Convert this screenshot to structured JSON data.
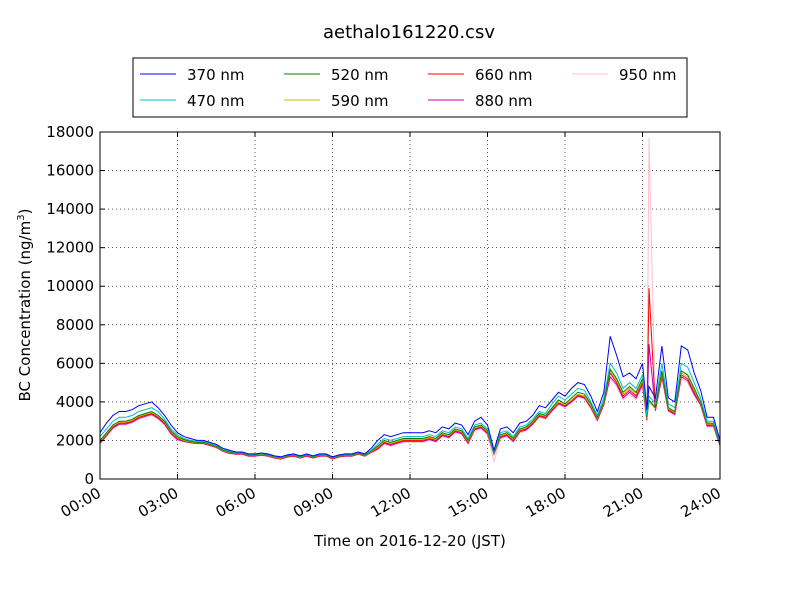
{
  "chart_data": {
    "type": "line",
    "title": "aethalo161220.csv",
    "xlabel": "Time on 2016-12-20 (JST)",
    "ylabel": "BC Concentration (ng/m",
    "ylabel_sup": "3",
    "ylabel_close": ")",
    "xlim": [
      0,
      24
    ],
    "ylim": [
      0,
      18000
    ],
    "grid": true,
    "legend_position": "top-center",
    "x_ticks": [
      {
        "value": 0,
        "label": "00:00"
      },
      {
        "value": 3,
        "label": "03:00"
      },
      {
        "value": 6,
        "label": "06:00"
      },
      {
        "value": 9,
        "label": "09:00"
      },
      {
        "value": 12,
        "label": "12:00"
      },
      {
        "value": 15,
        "label": "15:00"
      },
      {
        "value": 18,
        "label": "18:00"
      },
      {
        "value": 21,
        "label": "21:00"
      },
      {
        "value": 24,
        "label": "24:00"
      }
    ],
    "y_ticks": [
      {
        "value": 0,
        "label": "0"
      },
      {
        "value": 2000,
        "label": "2000"
      },
      {
        "value": 4000,
        "label": "4000"
      },
      {
        "value": 6000,
        "label": "6000"
      },
      {
        "value": 8000,
        "label": "8000"
      },
      {
        "value": 10000,
        "label": "10000"
      },
      {
        "value": 12000,
        "label": "12000"
      },
      {
        "value": 14000,
        "label": "14000"
      },
      {
        "value": 16000,
        "label": "16000"
      },
      {
        "value": 18000,
        "label": "18000"
      }
    ],
    "x": [
      0,
      0.25,
      0.5,
      0.75,
      1.0,
      1.25,
      1.5,
      1.75,
      2.0,
      2.25,
      2.5,
      2.75,
      3.0,
      3.25,
      3.5,
      3.75,
      4.0,
      4.25,
      4.5,
      4.75,
      5.0,
      5.25,
      5.5,
      5.75,
      6.0,
      6.25,
      6.5,
      6.75,
      7.0,
      7.25,
      7.5,
      7.75,
      8.0,
      8.25,
      8.5,
      8.75,
      9.0,
      9.25,
      9.5,
      9.75,
      10.0,
      10.25,
      10.5,
      10.75,
      11.0,
      11.25,
      11.5,
      11.75,
      12.0,
      12.25,
      12.5,
      12.75,
      13.0,
      13.25,
      13.5,
      13.75,
      14.0,
      14.25,
      14.5,
      14.75,
      15.0,
      15.25,
      15.5,
      15.75,
      16.0,
      16.25,
      16.5,
      16.75,
      17.0,
      17.25,
      17.5,
      17.75,
      18.0,
      18.25,
      18.5,
      18.75,
      19.0,
      19.25,
      19.5,
      19.75,
      20.0,
      20.25,
      20.5,
      20.75,
      21.0,
      21.17,
      21.25,
      21.5,
      21.75,
      22.0,
      22.25,
      22.5,
      22.75,
      23.0,
      23.25,
      23.5,
      23.75,
      24.0
    ],
    "series": [
      {
        "name": "370 nm",
        "color": "#0000ff",
        "values": [
          2400,
          2900,
          3300,
          3500,
          3500,
          3600,
          3800,
          3900,
          4000,
          3700,
          3300,
          2800,
          2400,
          2200,
          2100,
          2000,
          2000,
          1900,
          1800,
          1600,
          1500,
          1400,
          1400,
          1300,
          1300,
          1350,
          1300,
          1200,
          1150,
          1250,
          1300,
          1200,
          1300,
          1200,
          1300,
          1300,
          1150,
          1250,
          1300,
          1300,
          1400,
          1300,
          1600,
          2000,
          2300,
          2200,
          2300,
          2400,
          2400,
          2400,
          2400,
          2500,
          2400,
          2700,
          2600,
          2900,
          2800,
          2300,
          3000,
          3200,
          2800,
          1500,
          2600,
          2700,
          2400,
          2900,
          3000,
          3300,
          3800,
          3700,
          4100,
          4500,
          4300,
          4700,
          5000,
          4900,
          4300,
          3500,
          4500,
          7400,
          6400,
          5300,
          5500,
          5200,
          6000,
          3600,
          4800,
          4200,
          6900,
          4200,
          4000,
          6900,
          6700,
          5500,
          4600,
          3200,
          3200,
          2000
        ]
      },
      {
        "name": "470 nm",
        "color": "#00bfbf",
        "values": [
          2200,
          2600,
          3000,
          3200,
          3200,
          3300,
          3500,
          3600,
          3700,
          3500,
          3100,
          2600,
          2300,
          2100,
          2000,
          1950,
          1950,
          1850,
          1750,
          1550,
          1450,
          1380,
          1380,
          1280,
          1280,
          1320,
          1280,
          1180,
          1130,
          1230,
          1280,
          1180,
          1280,
          1180,
          1280,
          1280,
          1130,
          1230,
          1280,
          1280,
          1380,
          1280,
          1500,
          1800,
          2100,
          2000,
          2100,
          2200,
          2200,
          2200,
          2200,
          2300,
          2200,
          2500,
          2400,
          2700,
          2600,
          2100,
          2800,
          2900,
          2600,
          1400,
          2400,
          2500,
          2200,
          2700,
          2800,
          3100,
          3500,
          3400,
          3900,
          4300,
          4100,
          4400,
          4700,
          4600,
          4000,
          3300,
          4200,
          6000,
          5500,
          4700,
          5000,
          4700,
          5400,
          3300,
          4300,
          3900,
          6000,
          3900,
          3700,
          6000,
          5800,
          5000,
          4200,
          3000,
          3000,
          1900
        ]
      },
      {
        "name": "520 nm",
        "color": "#008000",
        "values": [
          2000,
          2400,
          2800,
          3000,
          3000,
          3100,
          3300,
          3400,
          3500,
          3300,
          3000,
          2500,
          2200,
          2050,
          1950,
          1900,
          1900,
          1800,
          1700,
          1500,
          1400,
          1350,
          1350,
          1250,
          1250,
          1300,
          1250,
          1150,
          1100,
          1200,
          1250,
          1150,
          1250,
          1150,
          1250,
          1250,
          1100,
          1200,
          1250,
          1250,
          1350,
          1250,
          1450,
          1700,
          2000,
          1900,
          2000,
          2100,
          2100,
          2100,
          2100,
          2200,
          2100,
          2400,
          2300,
          2600,
          2500,
          2000,
          2700,
          2800,
          2500,
          1350,
          2300,
          2400,
          2100,
          2600,
          2700,
          3000,
          3400,
          3300,
          3700,
          4100,
          3900,
          4200,
          4500,
          4400,
          3900,
          3200,
          4000,
          5700,
          5200,
          4500,
          4800,
          4500,
          5200,
          3200,
          4100,
          3700,
          5600,
          3700,
          3500,
          5600,
          5400,
          4700,
          4000,
          2900,
          2900,
          1800
        ]
      },
      {
        "name": "590 nm",
        "color": "#bfbf00",
        "values": [
          1950,
          2350,
          2750,
          2950,
          2950,
          3050,
          3250,
          3350,
          3450,
          3250,
          2950,
          2450,
          2150,
          2000,
          1920,
          1880,
          1880,
          1780,
          1680,
          1480,
          1380,
          1330,
          1330,
          1230,
          1230,
          1280,
          1230,
          1130,
          1080,
          1180,
          1230,
          1130,
          1230,
          1130,
          1230,
          1230,
          1080,
          1180,
          1230,
          1230,
          1330,
          1230,
          1420,
          1650,
          1950,
          1850,
          1950,
          2050,
          2050,
          2050,
          2050,
          2150,
          2050,
          2350,
          2250,
          2550,
          2450,
          1950,
          2650,
          2750,
          2450,
          1320,
          2250,
          2350,
          2050,
          2550,
          2650,
          2950,
          3350,
          3250,
          3650,
          4000,
          3850,
          4100,
          4400,
          4300,
          3800,
          3150,
          3950,
          5600,
          5100,
          4400,
          4700,
          4400,
          5100,
          3150,
          4000,
          3650,
          5500,
          3650,
          3450,
          5500,
          5300,
          4600,
          3950,
          2850,
          2850,
          1780
        ]
      },
      {
        "name": "660 nm",
        "color": "#ff0000",
        "values": [
          1900,
          2300,
          2700,
          2900,
          2900,
          3000,
          3200,
          3300,
          3400,
          3200,
          2900,
          2400,
          2100,
          1980,
          1900,
          1860,
          1860,
          1760,
          1660,
          1460,
          1360,
          1310,
          1310,
          1210,
          1210,
          1260,
          1210,
          1110,
          1060,
          1160,
          1210,
          1110,
          1210,
          1110,
          1210,
          1210,
          1060,
          1160,
          1210,
          1210,
          1310,
          1210,
          1400,
          1600,
          1900,
          1800,
          1900,
          2000,
          2000,
          2000,
          2000,
          2100,
          2000,
          2300,
          2200,
          2500,
          2400,
          1900,
          2600,
          2700,
          2400,
          1300,
          2200,
          2300,
          2000,
          2500,
          2600,
          2900,
          3300,
          3200,
          3600,
          3950,
          3800,
          4050,
          4350,
          4250,
          3750,
          3100,
          3900,
          5500,
          5000,
          4300,
          4600,
          4300,
          5000,
          3100,
          9900,
          3600,
          5400,
          3600,
          3400,
          5400,
          5200,
          4500,
          3900,
          2800,
          2800,
          1750
        ]
      },
      {
        "name": "880 nm",
        "color": "#bf00bf",
        "values": [
          1850,
          2250,
          2650,
          2850,
          2850,
          2950,
          3150,
          3250,
          3350,
          3150,
          2850,
          2350,
          2050,
          1950,
          1880,
          1840,
          1840,
          1740,
          1640,
          1440,
          1340,
          1290,
          1290,
          1190,
          1190,
          1240,
          1190,
          1090,
          1040,
          1140,
          1190,
          1090,
          1190,
          1090,
          1190,
          1190,
          1040,
          1140,
          1190,
          1190,
          1290,
          1190,
          1380,
          1550,
          1850,
          1750,
          1850,
          1950,
          1950,
          1950,
          1950,
          2050,
          1950,
          2250,
          2150,
          2450,
          2350,
          1850,
          2550,
          2650,
          2350,
          1280,
          2150,
          2250,
          1950,
          2450,
          2550,
          2850,
          3250,
          3150,
          3550,
          3900,
          3750,
          4000,
          4300,
          4200,
          3700,
          3050,
          3850,
          5300,
          4900,
          4200,
          4500,
          4200,
          4900,
          3050,
          7000,
          3550,
          5300,
          3550,
          3350,
          5300,
          5100,
          4400,
          3850,
          2750,
          2750,
          1720
        ]
      },
      {
        "name": "950 nm",
        "color": "#ffc0cb",
        "values": [
          1800,
          2200,
          2600,
          2800,
          2800,
          2900,
          3100,
          3200,
          3300,
          3100,
          2800,
          2300,
          2000,
          1920,
          1860,
          1820,
          1820,
          1720,
          1620,
          1420,
          1320,
          1270,
          1270,
          1170,
          1170,
          1220,
          1170,
          1070,
          1020,
          1120,
          1170,
          1070,
          1170,
          1070,
          1170,
          1170,
          1020,
          1120,
          1170,
          1170,
          1270,
          1170,
          1360,
          1500,
          1800,
          1700,
          1800,
          1900,
          1900,
          1900,
          1900,
          2000,
          1900,
          2200,
          2100,
          2400,
          2300,
          1800,
          2500,
          2600,
          2300,
          900,
          2100,
          2200,
          1900,
          2400,
          2500,
          2800,
          3200,
          3100,
          3500,
          3850,
          3700,
          3950,
          4250,
          4150,
          3650,
          3000,
          3800,
          5200,
          4800,
          4100,
          4400,
          4100,
          4800,
          3000,
          17700,
          3500,
          5200,
          3500,
          3300,
          5200,
          5000,
          4300,
          3800,
          2700,
          2700,
          1700
        ]
      }
    ]
  }
}
